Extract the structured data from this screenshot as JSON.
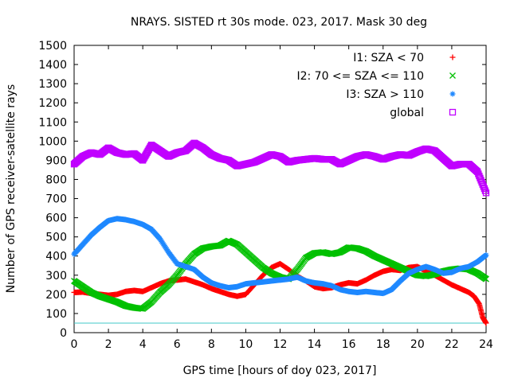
{
  "chart_data": {
    "type": "scatter",
    "title": "NRAYS. SISTED rt 30s mode. 023, 2017. Mask 30 deg",
    "xlabel": "GPS time [hours of doy 023, 2017]",
    "ylabel": "Number of GPS receiver-satellite rays",
    "xlim": [
      0,
      24
    ],
    "ylim": [
      0,
      1500
    ],
    "x_ticks": [
      "0",
      "2",
      "4",
      "6",
      "8",
      "10",
      "12",
      "14",
      "16",
      "18",
      "20",
      "22",
      "24"
    ],
    "y_ticks": [
      "0",
      "100",
      "200",
      "300",
      "400",
      "500",
      "600",
      "700",
      "800",
      "900",
      "1000",
      "1100",
      "1200",
      "1300",
      "1400",
      "1500"
    ],
    "grid": false,
    "legend_position": "top-right",
    "threshold_line": {
      "y": 50,
      "color": "#40c8c8"
    },
    "series": [
      {
        "name": "I1: SZA < 70",
        "color": "#ff0000",
        "marker": "plus",
        "x": [
          0,
          0.5,
          1,
          1.5,
          2,
          2.5,
          3,
          3.5,
          4,
          4.5,
          5,
          5.5,
          6,
          6.5,
          7,
          7.5,
          8,
          8.5,
          9,
          9.5,
          10,
          10.5,
          11,
          11.5,
          12,
          12.5,
          13,
          13.5,
          14,
          14.5,
          15,
          15.5,
          16,
          16.5,
          17,
          17.5,
          18,
          18.5,
          19,
          19.5,
          20,
          20.5,
          21,
          21.5,
          22,
          22.5,
          23,
          23.3,
          23.6,
          23.8,
          24
        ],
        "values": [
          210,
          212,
          205,
          200,
          195,
          200,
          215,
          220,
          215,
          235,
          255,
          270,
          275,
          280,
          265,
          250,
          230,
          215,
          200,
          190,
          200,
          250,
          300,
          340,
          360,
          330,
          295,
          270,
          240,
          230,
          235,
          250,
          260,
          255,
          275,
          300,
          320,
          330,
          325,
          340,
          345,
          320,
          300,
          275,
          250,
          230,
          210,
          190,
          150,
          80,
          50
        ]
      },
      {
        "name": "I2: 70 <= SZA <= 110",
        "color": "#00c000",
        "marker": "x",
        "x": [
          0,
          0.5,
          1,
          1.5,
          2,
          2.5,
          3,
          3.5,
          4,
          4.5,
          5,
          5.5,
          6,
          6.5,
          7,
          7.5,
          8,
          8.5,
          9,
          9.5,
          10,
          10.5,
          11,
          11.5,
          12,
          12.5,
          13,
          13.5,
          14,
          14.5,
          15,
          15.5,
          16,
          16.5,
          17,
          17.5,
          18,
          18.5,
          19,
          19.5,
          20,
          20.5,
          21,
          21.5,
          22,
          22.5,
          23,
          23.5,
          24
        ],
        "values": [
          270,
          240,
          210,
          190,
          175,
          160,
          140,
          130,
          125,
          160,
          210,
          250,
          300,
          360,
          410,
          440,
          450,
          455,
          480,
          460,
          420,
          380,
          340,
          310,
          290,
          280,
          330,
          390,
          415,
          420,
          410,
          420,
          445,
          440,
          425,
          400,
          380,
          360,
          340,
          320,
          300,
          295,
          305,
          320,
          330,
          335,
          330,
          310,
          280
        ]
      },
      {
        "name": "I3: SZA > 110",
        "color": "#1e88ff",
        "marker": "asterisk",
        "x": [
          0,
          0.5,
          1,
          1.5,
          2,
          2.5,
          3,
          3.5,
          4,
          4.5,
          5,
          5.5,
          6,
          6.5,
          7,
          7.5,
          8,
          8.5,
          9,
          9.5,
          10,
          10.5,
          11,
          11.5,
          12,
          12.5,
          13,
          13.5,
          14,
          14.5,
          15,
          15.5,
          16,
          16.5,
          17,
          17.5,
          18,
          18.5,
          19,
          19.5,
          20,
          20.5,
          21,
          21.5,
          22,
          22.5,
          23,
          23.5,
          24
        ],
        "values": [
          410,
          460,
          510,
          550,
          585,
          595,
          590,
          580,
          565,
          540,
          490,
          420,
          360,
          345,
          330,
          290,
          260,
          245,
          235,
          240,
          255,
          260,
          265,
          270,
          275,
          280,
          290,
          270,
          260,
          255,
          245,
          225,
          215,
          210,
          215,
          210,
          205,
          225,
          270,
          310,
          330,
          345,
          330,
          310,
          315,
          335,
          345,
          370,
          405
        ]
      },
      {
        "name": "global",
        "color": "#c000ff",
        "marker": "square",
        "x": [
          0,
          0.5,
          1,
          1.5,
          2,
          2.5,
          3,
          3.5,
          4,
          4.5,
          5,
          5.5,
          6,
          6.5,
          7,
          7.5,
          8,
          8.5,
          9,
          9.5,
          10,
          10.5,
          11,
          11.5,
          12,
          12.5,
          13,
          13.5,
          14,
          14.5,
          15,
          15.5,
          16,
          16.5,
          17,
          17.5,
          18,
          18.5,
          19,
          19.5,
          20,
          20.5,
          21,
          21.5,
          22,
          22.5,
          23,
          23.5,
          24
        ],
        "values": [
          880,
          920,
          940,
          930,
          965,
          940,
          930,
          935,
          900,
          980,
          950,
          920,
          940,
          950,
          990,
          965,
          930,
          910,
          900,
          870,
          880,
          890,
          910,
          930,
          920,
          890,
          900,
          905,
          910,
          905,
          905,
          880,
          900,
          920,
          930,
          920,
          905,
          920,
          930,
          925,
          945,
          960,
          950,
          910,
          870,
          880,
          880,
          840,
          730
        ]
      }
    ]
  }
}
